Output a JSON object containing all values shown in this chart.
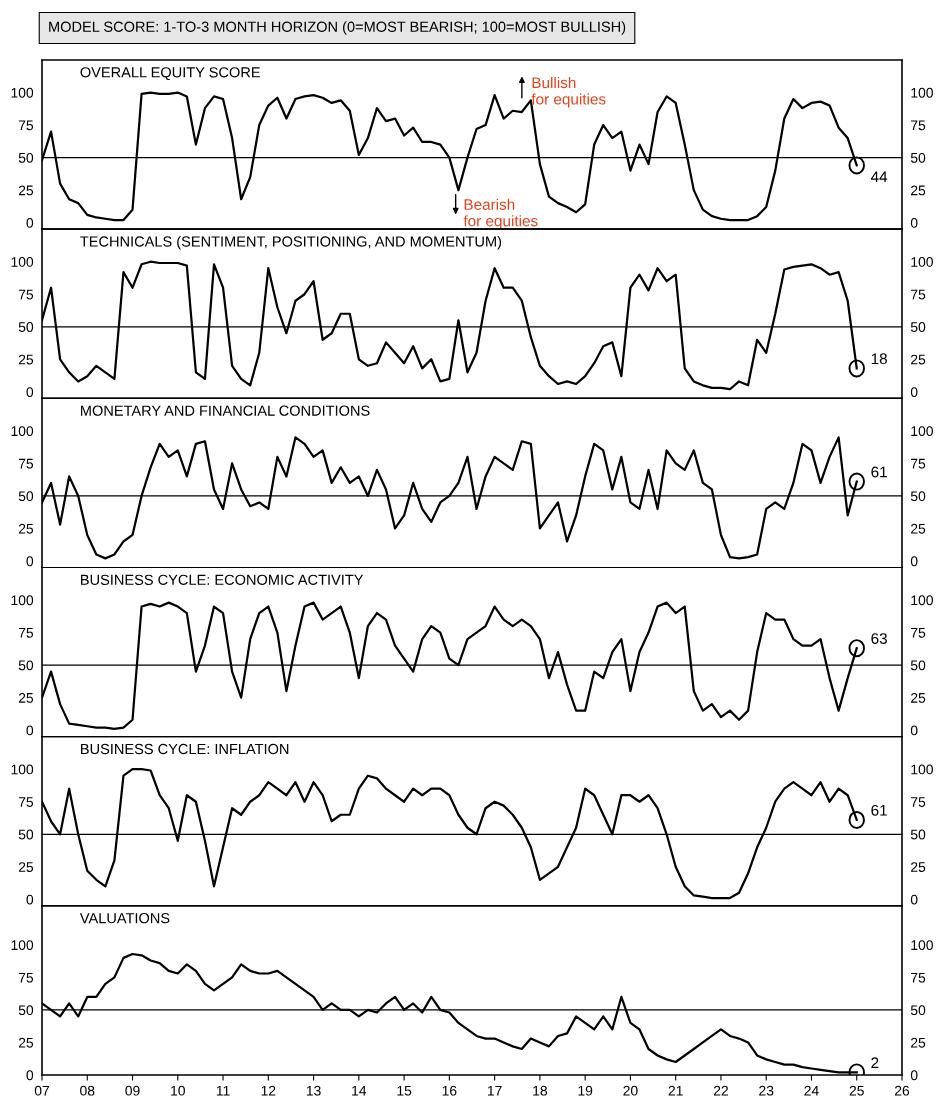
{
  "chart_data": [
    {
      "type": "line",
      "title": "OVERALL EQUITY SCORE",
      "subtitle": "MODEL SCORE: 1-TO-3 MONTH HORIZON (0=MOST BEARISH; 100=MOST BULLISH)",
      "xlim": [
        2007,
        2026
      ],
      "ylim": [
        -5,
        125
      ],
      "yticks": [
        0,
        25,
        50,
        75,
        100
      ],
      "y2lim": [
        -5,
        125
      ],
      "y2ticks": [
        0,
        25,
        50,
        75,
        100
      ],
      "tick_labels": "y",
      "grid": false,
      "legend": false,
      "ref_lines": [
        {
          "axis": "y",
          "value": 50,
          "color": "#000000"
        }
      ],
      "annotations": [
        "Bullish\nfor equities",
        "Bearish\nfor equities"
      ],
      "x": [
        2007.0,
        2007.2,
        2007.4,
        2007.6,
        2007.8,
        2008.0,
        2008.2,
        2008.4,
        2008.6,
        2008.8,
        2009.0,
        2009.2,
        2009.4,
        2009.6,
        2009.8,
        2010.0,
        2010.2,
        2010.4,
        2010.6,
        2010.8,
        2011.0,
        2011.2,
        2011.4,
        2011.6,
        2011.8,
        2012.0,
        2012.2,
        2012.4,
        2012.6,
        2012.8,
        2013.0,
        2013.2,
        2013.4,
        2013.6,
        2013.8,
        2014.0,
        2014.2,
        2014.4,
        2014.6,
        2014.8,
        2015.0,
        2015.2,
        2015.4,
        2015.6,
        2015.8,
        2016.0,
        2016.2,
        2016.4,
        2016.6,
        2016.8,
        2017.0,
        2017.2,
        2017.4,
        2017.6,
        2017.8,
        2018.0,
        2018.2,
        2018.4,
        2018.6,
        2018.8,
        2019.0,
        2019.2,
        2019.4,
        2019.6,
        2019.8,
        2020.0,
        2020.2,
        2020.4,
        2020.6,
        2020.8,
        2021.0,
        2021.2,
        2021.4,
        2021.6,
        2021.8,
        2022.0,
        2022.2,
        2022.4,
        2022.6,
        2022.8,
        2023.0,
        2023.2,
        2023.4,
        2023.6,
        2023.8,
        2024.0,
        2024.2,
        2024.4,
        2024.6,
        2024.8,
        2025.0
      ],
      "series": [
        {
          "color": "#000000",
          "values": [
            48,
            70,
            30,
            18,
            15,
            6,
            4,
            3,
            2,
            2,
            10,
            99,
            100,
            99,
            99,
            100,
            97,
            60,
            88,
            97,
            95,
            65,
            18,
            35,
            75,
            90,
            96,
            80,
            95,
            97,
            98,
            96,
            92,
            94,
            86,
            52,
            65,
            88,
            78,
            80,
            67,
            73,
            62,
            62,
            60,
            50,
            25,
            50,
            72,
            75,
            98,
            80,
            86,
            85,
            94,
            45,
            20,
            15,
            12,
            8,
            14,
            60,
            75,
            65,
            70,
            40,
            60,
            45,
            85,
            97,
            92,
            60,
            25,
            10,
            5,
            3,
            2,
            2,
            2,
            5,
            12,
            40,
            80,
            95,
            88,
            92,
            93,
            90,
            73,
            65,
            44
          ],
          "value_labels": [
            null,
            null,
            null,
            null,
            null,
            null,
            null,
            null,
            null,
            null,
            null,
            null,
            null,
            null,
            null,
            null,
            null,
            null,
            null,
            null,
            null,
            null,
            null,
            null,
            null,
            null,
            null,
            null,
            null,
            null,
            null,
            null,
            null,
            null,
            null,
            null,
            null,
            null,
            null,
            null,
            null,
            null,
            null,
            null,
            null,
            null,
            null,
            null,
            null,
            null,
            null,
            null,
            null,
            null,
            null,
            null,
            null,
            null,
            null,
            null,
            null,
            null,
            null,
            null,
            null,
            null,
            null,
            null,
            null,
            null,
            null,
            null,
            null,
            null,
            null,
            null,
            null,
            null,
            null,
            null,
            null,
            null,
            null,
            null,
            null,
            null,
            null,
            null,
            null,
            null,
            "44"
          ]
        }
      ]
    },
    {
      "type": "line",
      "title": "TECHNICALS (SENTIMENT, POSITIONING, AND MOMENTUM)",
      "xlim": [
        2007,
        2026
      ],
      "ylim": [
        -5,
        125
      ],
      "yticks": [
        0,
        25,
        50,
        75,
        100
      ],
      "y2lim": [
        -5,
        125
      ],
      "y2ticks": [
        0,
        25,
        50,
        75,
        100
      ],
      "tick_labels": "y",
      "grid": false,
      "legend": false,
      "ref_lines": [
        {
          "axis": "y",
          "value": 50,
          "color": "#000000"
        }
      ],
      "x": [
        2007.0,
        2007.2,
        2007.4,
        2007.6,
        2007.8,
        2008.0,
        2008.2,
        2008.4,
        2008.6,
        2008.8,
        2009.0,
        2009.2,
        2009.4,
        2009.6,
        2009.8,
        2010.0,
        2010.2,
        2010.4,
        2010.6,
        2010.8,
        2011.0,
        2011.2,
        2011.4,
        2011.6,
        2011.8,
        2012.0,
        2012.2,
        2012.4,
        2012.6,
        2012.8,
        2013.0,
        2013.2,
        2013.4,
        2013.6,
        2013.8,
        2014.0,
        2014.2,
        2014.4,
        2014.6,
        2014.8,
        2015.0,
        2015.2,
        2015.4,
        2015.6,
        2015.8,
        2016.0,
        2016.2,
        2016.4,
        2016.6,
        2016.8,
        2017.0,
        2017.2,
        2017.4,
        2017.6,
        2017.8,
        2018.0,
        2018.2,
        2018.4,
        2018.6,
        2018.8,
        2019.0,
        2019.2,
        2019.4,
        2019.6,
        2019.8,
        2020.0,
        2020.2,
        2020.4,
        2020.6,
        2020.8,
        2021.0,
        2021.2,
        2021.4,
        2021.6,
        2021.8,
        2022.0,
        2022.2,
        2022.4,
        2022.6,
        2022.8,
        2023.0,
        2023.2,
        2023.4,
        2023.6,
        2023.8,
        2024.0,
        2024.2,
        2024.4,
        2024.6,
        2024.8,
        2025.0
      ],
      "series": [
        {
          "color": "#000000",
          "values": [
            55,
            80,
            25,
            15,
            8,
            12,
            20,
            15,
            10,
            92,
            80,
            98,
            100,
            99,
            99,
            99,
            97,
            15,
            10,
            98,
            80,
            20,
            10,
            5,
            30,
            95,
            65,
            45,
            70,
            75,
            85,
            40,
            45,
            60,
            60,
            25,
            20,
            22,
            38,
            30,
            22,
            35,
            18,
            25,
            8,
            10,
            55,
            15,
            30,
            70,
            95,
            80,
            80,
            70,
            42,
            20,
            12,
            6,
            8,
            6,
            12,
            22,
            35,
            38,
            12,
            80,
            90,
            78,
            95,
            85,
            90,
            18,
            8,
            5,
            3,
            3,
            2,
            8,
            5,
            40,
            30,
            60,
            94,
            96,
            97,
            98,
            95,
            90,
            92,
            70,
            18
          ],
          "value_labels": [
            null,
            null,
            null,
            null,
            null,
            null,
            null,
            null,
            null,
            null,
            null,
            null,
            null,
            null,
            null,
            null,
            null,
            null,
            null,
            null,
            null,
            null,
            null,
            null,
            null,
            null,
            null,
            null,
            null,
            null,
            null,
            null,
            null,
            null,
            null,
            null,
            null,
            null,
            null,
            null,
            null,
            null,
            null,
            null,
            null,
            null,
            null,
            null,
            null,
            null,
            null,
            null,
            null,
            null,
            null,
            null,
            null,
            null,
            null,
            null,
            null,
            null,
            null,
            null,
            null,
            null,
            null,
            null,
            null,
            null,
            null,
            null,
            null,
            null,
            null,
            null,
            null,
            null,
            null,
            null,
            null,
            null,
            null,
            null,
            null,
            null,
            null,
            null,
            null,
            null,
            "18"
          ]
        }
      ]
    },
    {
      "type": "line",
      "title": "MONETARY AND FINANCIAL CONDITIONS",
      "xlim": [
        2007,
        2026
      ],
      "ylim": [
        -5,
        125
      ],
      "yticks": [
        0,
        25,
        50,
        75,
        100
      ],
      "y2lim": [
        -5,
        125
      ],
      "y2ticks": [
        0,
        25,
        50,
        75,
        100
      ],
      "tick_labels": "y",
      "grid": false,
      "legend": false,
      "ref_lines": [
        {
          "axis": "y",
          "value": 50,
          "color": "#000000"
        }
      ],
      "x": [
        2007.0,
        2007.2,
        2007.4,
        2007.6,
        2007.8,
        2008.0,
        2008.2,
        2008.4,
        2008.6,
        2008.8,
        2009.0,
        2009.2,
        2009.4,
        2009.6,
        2009.8,
        2010.0,
        2010.2,
        2010.4,
        2010.6,
        2010.8,
        2011.0,
        2011.2,
        2011.4,
        2011.6,
        2011.8,
        2012.0,
        2012.2,
        2012.4,
        2012.6,
        2012.8,
        2013.0,
        2013.2,
        2013.4,
        2013.6,
        2013.8,
        2014.0,
        2014.2,
        2014.4,
        2014.6,
        2014.8,
        2015.0,
        2015.2,
        2015.4,
        2015.6,
        2015.8,
        2016.0,
        2016.2,
        2016.4,
        2016.6,
        2016.8,
        2017.0,
        2017.2,
        2017.4,
        2017.6,
        2017.8,
        2018.0,
        2018.2,
        2018.4,
        2018.6,
        2018.8,
        2019.0,
        2019.2,
        2019.4,
        2019.6,
        2019.8,
        2020.0,
        2020.2,
        2020.4,
        2020.6,
        2020.8,
        2021.0,
        2021.2,
        2021.4,
        2021.6,
        2021.8,
        2022.0,
        2022.2,
        2022.4,
        2022.6,
        2022.8,
        2023.0,
        2023.2,
        2023.4,
        2023.6,
        2023.8,
        2024.0,
        2024.2,
        2024.4,
        2024.6,
        2024.8,
        2025.0
      ],
      "series": [
        {
          "color": "#000000",
          "values": [
            45,
            60,
            28,
            65,
            50,
            20,
            5,
            2,
            5,
            15,
            20,
            50,
            72,
            90,
            80,
            85,
            65,
            90,
            92,
            55,
            40,
            75,
            55,
            42,
            45,
            40,
            80,
            65,
            95,
            90,
            80,
            85,
            60,
            72,
            60,
            65,
            50,
            70,
            55,
            25,
            35,
            60,
            40,
            30,
            45,
            50,
            60,
            80,
            40,
            65,
            80,
            75,
            70,
            92,
            90,
            25,
            35,
            45,
            15,
            35,
            65,
            90,
            85,
            55,
            80,
            45,
            40,
            70,
            40,
            85,
            75,
            70,
            85,
            60,
            55,
            20,
            3,
            2,
            3,
            5,
            40,
            45,
            40,
            60,
            90,
            85,
            60,
            80,
            95,
            35,
            61
          ],
          "value_labels": [
            null,
            null,
            null,
            null,
            null,
            null,
            null,
            null,
            null,
            null,
            null,
            null,
            null,
            null,
            null,
            null,
            null,
            null,
            null,
            null,
            null,
            null,
            null,
            null,
            null,
            null,
            null,
            null,
            null,
            null,
            null,
            null,
            null,
            null,
            null,
            null,
            null,
            null,
            null,
            null,
            null,
            null,
            null,
            null,
            null,
            null,
            null,
            null,
            null,
            null,
            null,
            null,
            null,
            null,
            null,
            null,
            null,
            null,
            null,
            null,
            null,
            null,
            null,
            null,
            null,
            null,
            null,
            null,
            null,
            null,
            null,
            null,
            null,
            null,
            null,
            null,
            null,
            null,
            null,
            null,
            null,
            null,
            null,
            null,
            null,
            null,
            null,
            null,
            null,
            null,
            "61"
          ]
        }
      ]
    },
    {
      "type": "line",
      "title": "BUSINESS CYCLE: ECONOMIC ACTIVITY",
      "xlim": [
        2007,
        2026
      ],
      "ylim": [
        -5,
        125
      ],
      "yticks": [
        0,
        25,
        50,
        75,
        100
      ],
      "y2lim": [
        -5,
        125
      ],
      "y2ticks": [
        0,
        25,
        50,
        75,
        100
      ],
      "tick_labels": "y",
      "grid": false,
      "legend": false,
      "ref_lines": [
        {
          "axis": "y",
          "value": 50,
          "color": "#000000"
        }
      ],
      "x": [
        2007.0,
        2007.2,
        2007.4,
        2007.6,
        2007.8,
        2008.0,
        2008.2,
        2008.4,
        2008.6,
        2008.8,
        2009.0,
        2009.2,
        2009.4,
        2009.6,
        2009.8,
        2010.0,
        2010.2,
        2010.4,
        2010.6,
        2010.8,
        2011.0,
        2011.2,
        2011.4,
        2011.6,
        2011.8,
        2012.0,
        2012.2,
        2012.4,
        2012.6,
        2012.8,
        2013.0,
        2013.2,
        2013.4,
        2013.6,
        2013.8,
        2014.0,
        2014.2,
        2014.4,
        2014.6,
        2014.8,
        2015.0,
        2015.2,
        2015.4,
        2015.6,
        2015.8,
        2016.0,
        2016.2,
        2016.4,
        2016.6,
        2016.8,
        2017.0,
        2017.2,
        2017.4,
        2017.6,
        2017.8,
        2018.0,
        2018.2,
        2018.4,
        2018.6,
        2018.8,
        2019.0,
        2019.2,
        2019.4,
        2019.6,
        2019.8,
        2020.0,
        2020.2,
        2020.4,
        2020.6,
        2020.8,
        2021.0,
        2021.2,
        2021.4,
        2021.6,
        2021.8,
        2022.0,
        2022.2,
        2022.4,
        2022.6,
        2022.8,
        2023.0,
        2023.2,
        2023.4,
        2023.6,
        2023.8,
        2024.0,
        2024.2,
        2024.4,
        2024.6,
        2024.8,
        2025.0
      ],
      "series": [
        {
          "color": "#000000",
          "values": [
            25,
            45,
            20,
            5,
            4,
            3,
            2,
            2,
            1,
            2,
            8,
            95,
            97,
            95,
            98,
            95,
            90,
            45,
            65,
            95,
            90,
            45,
            25,
            70,
            90,
            95,
            75,
            30,
            65,
            95,
            98,
            85,
            90,
            95,
            75,
            40,
            80,
            90,
            85,
            65,
            55,
            45,
            70,
            80,
            75,
            55,
            50,
            70,
            75,
            80,
            95,
            85,
            80,
            85,
            80,
            70,
            40,
            60,
            35,
            15,
            15,
            45,
            40,
            60,
            70,
            30,
            60,
            75,
            95,
            98,
            90,
            95,
            30,
            15,
            20,
            10,
            15,
            8,
            15,
            60,
            90,
            85,
            85,
            70,
            65,
            65,
            70,
            40,
            15,
            40,
            63
          ],
          "value_labels": [
            null,
            null,
            null,
            null,
            null,
            null,
            null,
            null,
            null,
            null,
            null,
            null,
            null,
            null,
            null,
            null,
            null,
            null,
            null,
            null,
            null,
            null,
            null,
            null,
            null,
            null,
            null,
            null,
            null,
            null,
            null,
            null,
            null,
            null,
            null,
            null,
            null,
            null,
            null,
            null,
            null,
            null,
            null,
            null,
            null,
            null,
            null,
            null,
            null,
            null,
            null,
            null,
            null,
            null,
            null,
            null,
            null,
            null,
            null,
            null,
            null,
            null,
            null,
            null,
            null,
            null,
            null,
            null,
            null,
            null,
            null,
            null,
            null,
            null,
            null,
            null,
            null,
            null,
            null,
            null,
            null,
            null,
            null,
            null,
            null,
            null,
            null,
            null,
            null,
            null,
            "63"
          ]
        }
      ]
    },
    {
      "type": "line",
      "title": "BUSINESS CYCLE: INFLATION",
      "xlim": [
        2007,
        2026
      ],
      "ylim": [
        -5,
        125
      ],
      "yticks": [
        0,
        25,
        50,
        75,
        100
      ],
      "y2lim": [
        -5,
        125
      ],
      "y2ticks": [
        0,
        25,
        50,
        75,
        100
      ],
      "tick_labels": "y",
      "grid": false,
      "legend": false,
      "ref_lines": [
        {
          "axis": "y",
          "value": 50,
          "color": "#000000"
        }
      ],
      "x": [
        2007.0,
        2007.2,
        2007.4,
        2007.6,
        2007.8,
        2008.0,
        2008.2,
        2008.4,
        2008.6,
        2008.8,
        2009.0,
        2009.2,
        2009.4,
        2009.6,
        2009.8,
        2010.0,
        2010.2,
        2010.4,
        2010.6,
        2010.8,
        2011.0,
        2011.2,
        2011.4,
        2011.6,
        2011.8,
        2012.0,
        2012.2,
        2012.4,
        2012.6,
        2012.8,
        2013.0,
        2013.2,
        2013.4,
        2013.6,
        2013.8,
        2014.0,
        2014.2,
        2014.4,
        2014.6,
        2014.8,
        2015.0,
        2015.2,
        2015.4,
        2015.6,
        2015.8,
        2016.0,
        2016.2,
        2016.4,
        2016.6,
        2016.8,
        2017.0,
        2017.2,
        2017.4,
        2017.6,
        2017.8,
        2018.0,
        2018.2,
        2018.4,
        2018.6,
        2018.8,
        2019.0,
        2019.2,
        2019.4,
        2019.6,
        2019.8,
        2020.0,
        2020.2,
        2020.4,
        2020.6,
        2020.8,
        2021.0,
        2021.2,
        2021.4,
        2021.6,
        2021.8,
        2022.0,
        2022.2,
        2022.4,
        2022.6,
        2022.8,
        2023.0,
        2023.2,
        2023.4,
        2023.6,
        2023.8,
        2024.0,
        2024.2,
        2024.4,
        2024.6,
        2024.8,
        2025.0
      ],
      "series": [
        {
          "color": "#000000",
          "values": [
            75,
            60,
            50,
            85,
            50,
            22,
            15,
            10,
            30,
            95,
            100,
            100,
            99,
            80,
            70,
            45,
            80,
            75,
            45,
            10,
            40,
            70,
            65,
            75,
            80,
            90,
            85,
            80,
            90,
            75,
            90,
            80,
            60,
            65,
            65,
            85,
            95,
            93,
            85,
            80,
            75,
            85,
            80,
            85,
            85,
            80,
            65,
            55,
            50,
            70,
            75,
            72,
            65,
            55,
            40,
            15,
            20,
            25,
            40,
            55,
            85,
            80,
            65,
            50,
            80,
            80,
            75,
            80,
            70,
            50,
            25,
            10,
            3,
            2,
            1,
            1,
            1,
            5,
            20,
            40,
            55,
            75,
            85,
            90,
            85,
            80,
            90,
            75,
            85,
            80,
            61
          ],
          "value_labels": [
            null,
            null,
            null,
            null,
            null,
            null,
            null,
            null,
            null,
            null,
            null,
            null,
            null,
            null,
            null,
            null,
            null,
            null,
            null,
            null,
            null,
            null,
            null,
            null,
            null,
            null,
            null,
            null,
            null,
            null,
            null,
            null,
            null,
            null,
            null,
            null,
            null,
            null,
            null,
            null,
            null,
            null,
            null,
            null,
            null,
            null,
            null,
            null,
            null,
            null,
            null,
            null,
            null,
            null,
            null,
            null,
            null,
            null,
            null,
            null,
            null,
            null,
            null,
            null,
            null,
            null,
            null,
            null,
            null,
            null,
            null,
            null,
            null,
            null,
            null,
            null,
            null,
            null,
            null,
            null,
            null,
            null,
            null,
            null,
            null,
            null,
            null,
            null,
            null,
            null,
            "61"
          ]
        }
      ]
    },
    {
      "type": "line",
      "title": "VALUATIONS",
      "xlim": [
        2007,
        2026
      ],
      "xticks": [
        {
          "value": 2007,
          "label": "07"
        },
        {
          "value": 2008,
          "label": "08"
        },
        {
          "value": 2009,
          "label": "09"
        },
        {
          "value": 2010,
          "label": "10"
        },
        {
          "value": 2011,
          "label": "11"
        },
        {
          "value": 2012,
          "label": "12"
        },
        {
          "value": 2013,
          "label": "13"
        },
        {
          "value": 2014,
          "label": "14"
        },
        {
          "value": 2015,
          "label": "15"
        },
        {
          "value": 2016,
          "label": "16"
        },
        {
          "value": 2017,
          "label": "17"
        },
        {
          "value": 2018,
          "label": "18"
        },
        {
          "value": 2019,
          "label": "19"
        },
        {
          "value": 2020,
          "label": "20"
        },
        {
          "value": 2021,
          "label": "21"
        },
        {
          "value": 2022,
          "label": "22"
        },
        {
          "value": 2023,
          "label": "23"
        },
        {
          "value": 2024,
          "label": "24"
        },
        {
          "value": 2025,
          "label": "25"
        },
        {
          "value": 2026,
          "label": "26"
        }
      ],
      "ylim": [
        0,
        130
      ],
      "yticks": [
        0,
        25,
        50,
        75,
        100
      ],
      "y2lim": [
        0,
        130
      ],
      "y2ticks": [
        0,
        25,
        50,
        75,
        100
      ],
      "grid": false,
      "legend": false,
      "ref_lines": [
        {
          "axis": "y",
          "value": 50,
          "color": "#000000"
        }
      ],
      "x": [
        2007.0,
        2007.2,
        2007.4,
        2007.6,
        2007.8,
        2008.0,
        2008.2,
        2008.4,
        2008.6,
        2008.8,
        2009.0,
        2009.2,
        2009.4,
        2009.6,
        2009.8,
        2010.0,
        2010.2,
        2010.4,
        2010.6,
        2010.8,
        2011.0,
        2011.2,
        2011.4,
        2011.6,
        2011.8,
        2012.0,
        2012.2,
        2012.4,
        2012.6,
        2012.8,
        2013.0,
        2013.2,
        2013.4,
        2013.6,
        2013.8,
        2014.0,
        2014.2,
        2014.4,
        2014.6,
        2014.8,
        2015.0,
        2015.2,
        2015.4,
        2015.6,
        2015.8,
        2016.0,
        2016.2,
        2016.4,
        2016.6,
        2016.8,
        2017.0,
        2017.2,
        2017.4,
        2017.6,
        2017.8,
        2018.0,
        2018.2,
        2018.4,
        2018.6,
        2018.8,
        2019.0,
        2019.2,
        2019.4,
        2019.6,
        2019.8,
        2020.0,
        2020.2,
        2020.4,
        2020.6,
        2020.8,
        2021.0,
        2021.2,
        2021.4,
        2021.6,
        2021.8,
        2022.0,
        2022.2,
        2022.4,
        2022.6,
        2022.8,
        2023.0,
        2023.2,
        2023.4,
        2023.6,
        2023.8,
        2024.0,
        2024.2,
        2024.4,
        2024.6,
        2024.8,
        2025.0
      ],
      "series": [
        {
          "color": "#000000",
          "values": [
            55,
            50,
            45,
            55,
            45,
            60,
            60,
            70,
            75,
            90,
            93,
            92,
            88,
            86,
            80,
            78,
            85,
            80,
            70,
            65,
            70,
            75,
            85,
            80,
            78,
            78,
            80,
            75,
            70,
            65,
            60,
            50,
            55,
            50,
            50,
            45,
            50,
            48,
            55,
            60,
            50,
            55,
            48,
            60,
            50,
            48,
            40,
            35,
            30,
            28,
            28,
            25,
            22,
            20,
            28,
            25,
            22,
            30,
            32,
            45,
            40,
            35,
            45,
            35,
            60,
            40,
            35,
            20,
            15,
            12,
            10,
            15,
            20,
            25,
            30,
            35,
            30,
            28,
            25,
            15,
            12,
            10,
            8,
            8,
            6,
            5,
            4,
            3,
            2,
            2,
            2
          ],
          "value_labels": [
            null,
            null,
            null,
            null,
            null,
            null,
            null,
            null,
            null,
            null,
            null,
            null,
            null,
            null,
            null,
            null,
            null,
            null,
            null,
            null,
            null,
            null,
            null,
            null,
            null,
            null,
            null,
            null,
            null,
            null,
            null,
            null,
            null,
            null,
            null,
            null,
            null,
            null,
            null,
            null,
            null,
            null,
            null,
            null,
            null,
            null,
            null,
            null,
            null,
            null,
            null,
            null,
            null,
            null,
            null,
            null,
            null,
            null,
            null,
            null,
            null,
            null,
            null,
            null,
            null,
            null,
            null,
            null,
            null,
            null,
            null,
            null,
            null,
            null,
            null,
            null,
            null,
            null,
            null,
            null,
            null,
            null,
            null,
            null,
            null,
            null,
            null,
            null,
            null,
            null,
            "2"
          ]
        }
      ]
    }
  ]
}
